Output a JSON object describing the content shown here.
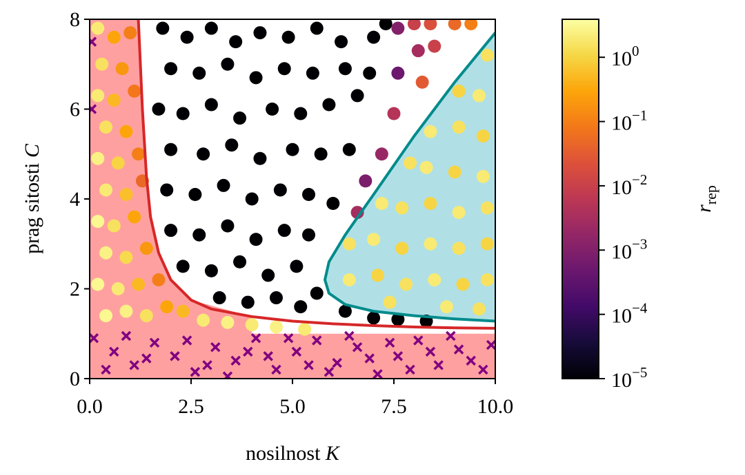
{
  "chart_data": {
    "type": "scatter",
    "xlabel": {
      "text": "nosilnost ",
      "var": "K"
    },
    "ylabel": {
      "text": "prag sitosti ",
      "var": "C"
    },
    "xlim": [
      0,
      10
    ],
    "ylim": [
      0,
      8
    ],
    "xticks": [
      {
        "value": 0,
        "label": "0.0"
      },
      2.5,
      {
        "value": 5,
        "label": "5.0"
      },
      7.5,
      {
        "value": 10,
        "label": "10.0"
      }
    ],
    "yticks": [
      0,
      2,
      4,
      6,
      8
    ],
    "colorbar": {
      "colormap": "inferno",
      "log": true,
      "clim": [
        1e-05,
        3.9
      ],
      "label": {
        "var": "r",
        "sub": "rep"
      },
      "ticks": [
        {
          "value": 1,
          "label": "10",
          "exp": "0"
        },
        {
          "value": 0.1,
          "label": "10",
          "exp": "−1"
        },
        {
          "value": 0.01,
          "label": "10",
          "exp": "−2"
        },
        {
          "value": 0.001,
          "label": "10",
          "exp": "−3"
        },
        {
          "value": 0.0001,
          "label": "10",
          "exp": "−4"
        },
        {
          "value": 1e-05,
          "label": "10",
          "exp": "−5"
        }
      ]
    },
    "regions": [
      {
        "color": "#ffa0a0",
        "x": [
          0,
          1.2,
          1.3,
          1.4,
          1.5,
          1.7,
          2,
          2.5,
          4,
          4,
          10,
          10,
          0
        ],
        "y": [
          8,
          8,
          6,
          4.5,
          3.6,
          2.8,
          2.2,
          1.75,
          1.38,
          1,
          1,
          0,
          0
        ]
      },
      {
        "color": "#b0e0e6",
        "x": [
          10,
          9,
          8,
          7,
          6.3,
          5.9,
          5.8,
          5.9,
          6.3,
          7,
          8,
          9,
          10
        ],
        "y": [
          7.7,
          6.6,
          5.4,
          4.1,
          3.2,
          2.6,
          2.2,
          1.9,
          1.65,
          1.5,
          1.4,
          1.33,
          1.28
        ]
      }
    ],
    "curves": [
      {
        "color": "#d62728",
        "x": [
          1.2,
          1.3,
          1.4,
          1.5,
          1.7,
          2.0,
          2.5,
          3,
          4,
          5,
          6,
          7,
          8,
          9,
          10
        ],
        "y": [
          8,
          6,
          4.5,
          3.6,
          2.8,
          2.2,
          1.75,
          1.55,
          1.38,
          1.28,
          1.22,
          1.18,
          1.15,
          1.13,
          1.12
        ]
      },
      {
        "color": "#008b8b",
        "x": [
          10,
          9,
          8,
          7,
          6.3,
          5.9,
          5.8,
          5.9,
          6.3,
          7,
          8,
          9,
          10
        ],
        "y": [
          7.7,
          6.6,
          5.4,
          4.1,
          3.2,
          2.6,
          2.2,
          1.9,
          1.65,
          1.5,
          1.4,
          1.33,
          1.28
        ]
      }
    ],
    "series": [
      {
        "marker": "circle",
        "x": [
          0.2,
          0.6,
          1.0,
          0.3,
          0.8,
          0.2,
          0.6,
          1.1,
          0.4,
          0.9,
          0.2,
          0.7,
          1.2,
          0.4,
          0.9,
          1.3,
          0.2,
          0.6,
          1.1,
          0.4,
          0.9,
          1.4,
          0.2,
          0.7,
          1.2,
          1.7,
          0.4,
          0.9,
          1.4,
          1.9,
          2.3,
          2.8,
          3.4,
          4.0,
          4.6,
          5.3,
          1.8,
          2.4,
          3.0,
          3.6,
          4.2,
          4.9,
          5.6,
          6.2,
          2.0,
          2.7,
          3.4,
          4.1,
          4.8,
          5.5,
          6.3,
          7.0,
          1.7,
          2.3,
          3.0,
          3.7,
          4.5,
          5.2,
          5.9,
          6.6,
          2.0,
          2.8,
          3.5,
          4.2,
          5.0,
          5.7,
          6.4,
          1.9,
          2.6,
          3.3,
          4.0,
          4.7,
          5.4,
          6.0,
          2.0,
          2.7,
          3.4,
          4.1,
          4.8,
          5.4,
          2.3,
          3.0,
          3.7,
          4.4,
          5.1,
          5.6,
          6.3,
          3.2,
          3.9,
          4.6,
          5.2,
          7.0,
          7.6,
          8.3,
          6.9,
          7.3,
          7.6,
          8.0,
          8.4,
          8.1,
          8.5,
          7.6,
          8.2,
          7.5,
          7.2,
          6.8,
          9.0,
          9.4,
          6.6,
          9.8,
          9.1,
          9.6,
          8.4,
          9.1,
          9.7,
          7.9,
          8.3,
          9.0,
          9.7,
          7.2,
          7.7,
          8.4,
          9.1,
          9.8,
          6.4,
          7.0,
          7.7,
          8.4,
          9.1,
          9.8,
          6.4,
          7.1,
          7.8,
          8.5,
          9.2,
          9.8,
          7.4,
          8.8,
          9.6
        ],
        "y": [
          7.8,
          7.6,
          7.7,
          7.0,
          6.9,
          6.3,
          6.2,
          6.4,
          5.6,
          5.5,
          4.9,
          4.8,
          5.0,
          4.2,
          4.1,
          4.4,
          3.5,
          3.4,
          3.6,
          2.8,
          2.7,
          2.9,
          2.1,
          2.0,
          2.1,
          2.2,
          1.4,
          1.5,
          1.4,
          1.6,
          1.5,
          1.3,
          1.25,
          1.2,
          1.15,
          1.1,
          7.8,
          7.6,
          7.8,
          7.5,
          7.7,
          7.6,
          7.8,
          7.5,
          6.9,
          6.8,
          7.0,
          6.7,
          6.9,
          6.8,
          6.9,
          7.6,
          6.0,
          5.9,
          6.1,
          5.8,
          6.0,
          5.9,
          6.1,
          6.3,
          5.1,
          5.0,
          5.2,
          4.9,
          5.1,
          5.0,
          5.1,
          4.2,
          4.1,
          4.3,
          4.0,
          4.2,
          4.1,
          3.9,
          3.3,
          3.2,
          3.4,
          3.1,
          3.3,
          3.2,
          2.5,
          2.4,
          2.6,
          2.3,
          2.5,
          1.9,
          1.5,
          1.8,
          1.7,
          1.8,
          1.6,
          1.35,
          1.32,
          1.28,
          6.8,
          7.9,
          7.8,
          7.9,
          7.9,
          7.3,
          7.4,
          6.8,
          6.6,
          5.9,
          5.0,
          4.4,
          7.9,
          7.9,
          3.7,
          7.2,
          6.4,
          6.3,
          5.5,
          5.6,
          5.4,
          4.8,
          4.7,
          4.6,
          4.5,
          3.9,
          3.8,
          3.9,
          3.7,
          3.8,
          3.0,
          3.1,
          2.9,
          3.0,
          2.9,
          3.0,
          2.2,
          2.3,
          2.1,
          2.2,
          2.1,
          2.2,
          1.7,
          1.6,
          1.55
        ],
        "values": [
          2,
          0.3,
          0.1,
          1.5,
          0.2,
          2,
          0.5,
          0.08,
          1.5,
          0.3,
          2.5,
          1,
          0.1,
          2,
          0.6,
          0.05,
          3,
          1.5,
          0.3,
          2.5,
          1.2,
          0.2,
          3,
          2,
          0.5,
          0.1,
          3,
          2.5,
          1.5,
          0.3,
          0.5,
          2,
          2.5,
          2,
          2.5,
          2,
          1e-05,
          1e-05,
          1e-05,
          1e-05,
          1e-05,
          1e-05,
          1e-05,
          1e-05,
          1e-05,
          1e-05,
          1e-05,
          1e-05,
          1e-05,
          1e-05,
          1e-05,
          1e-05,
          1e-05,
          1e-05,
          1e-05,
          1e-05,
          1e-05,
          1e-05,
          1e-05,
          1e-05,
          1e-05,
          1e-05,
          1e-05,
          1e-05,
          1e-05,
          1e-05,
          1e-05,
          1e-05,
          1e-05,
          1e-05,
          1e-05,
          1e-05,
          1e-05,
          1e-05,
          1e-05,
          1e-05,
          1e-05,
          1e-05,
          1e-05,
          1e-05,
          1e-05,
          1e-05,
          1e-05,
          1e-05,
          1e-05,
          1e-05,
          1e-05,
          1e-05,
          1e-05,
          1e-05,
          1e-05,
          1e-05,
          1e-05,
          1e-05,
          1e-05,
          1e-05,
          0.001,
          0.01,
          0.02,
          0.003,
          0.01,
          0.0005,
          0.03,
          0.005,
          0.002,
          0.0008,
          0.05,
          0.1,
          0.003,
          1.5,
          1,
          2,
          2,
          1.5,
          1,
          1.5,
          2,
          1,
          2,
          2,
          1.5,
          1,
          2,
          1.5,
          1.5,
          2,
          1,
          2,
          1.5,
          1,
          2,
          1,
          1.5,
          2,
          1,
          1.5,
          1.5,
          2,
          1.5
        ]
      },
      {
        "marker": "x",
        "color": "#800080",
        "x": [
          0.1,
          0.6,
          1.1,
          1.6,
          2.1,
          2.6,
          3.1,
          3.6,
          4.1,
          4.6,
          5.1,
          5.6,
          6.1,
          6.6,
          7.1,
          7.6,
          8.1,
          8.6,
          9.1,
          9.7,
          0.4,
          0.9,
          1.4,
          2.4,
          2.9,
          3.4,
          3.9,
          4.4,
          4.9,
          5.4,
          5.9,
          6.4,
          6.9,
          7.4,
          7.9,
          8.4,
          8.9,
          9.4,
          9.9,
          0.05,
          0.05
        ],
        "y": [
          0.9,
          0.6,
          0.3,
          0.8,
          0.5,
          0.15,
          0.7,
          0.4,
          0.9,
          0.2,
          0.6,
          0.85,
          0.35,
          0.7,
          0.1,
          0.5,
          0.85,
          0.3,
          0.65,
          0.2,
          0.2,
          0.95,
          0.45,
          0.85,
          0.3,
          0.05,
          0.6,
          0.5,
          0.9,
          0.3,
          0.15,
          0.95,
          0.45,
          0.8,
          0.2,
          0.6,
          0.95,
          0.4,
          0.75,
          7.5,
          6.0
        ]
      }
    ]
  }
}
